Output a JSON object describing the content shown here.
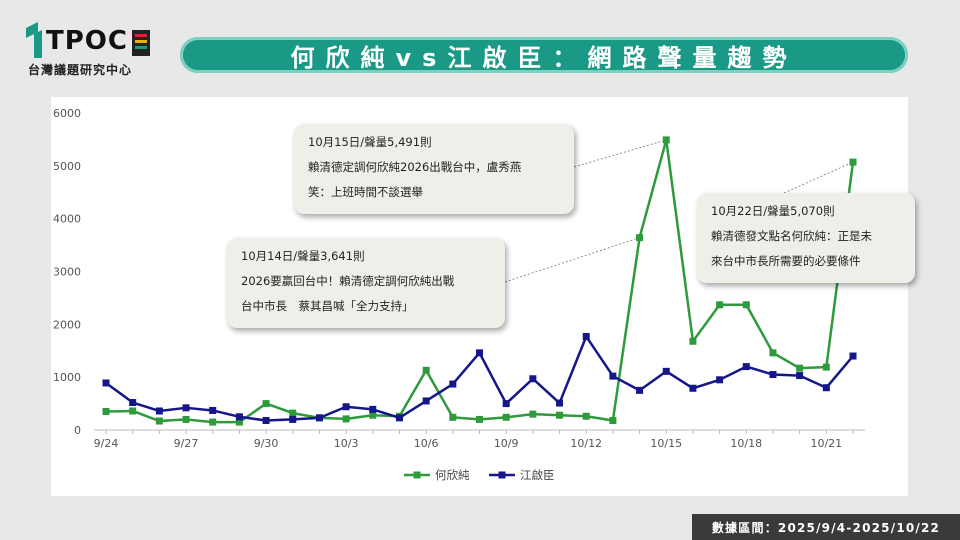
{
  "logo": {
    "text": "TPOC",
    "subtitle": "台灣議題研究中心"
  },
  "header": {
    "title": "何欣純vs江啟臣：網路聲量趨勢"
  },
  "footer": {
    "date_range": "數據區間：2025/9/4-2025/10/22"
  },
  "colors": {
    "green": "#2e9a3c",
    "navy": "#15168a",
    "teal": "#1a9a86"
  },
  "chart_data": {
    "type": "line",
    "title": "",
    "xlabel": "",
    "ylabel": "",
    "ylim": [
      0,
      6000
    ],
    "yticks": [
      0,
      1000,
      2000,
      3000,
      4000,
      5000,
      6000
    ],
    "x": [
      "9/24",
      "9/25",
      "9/26",
      "9/27",
      "9/28",
      "9/29",
      "9/30",
      "10/1",
      "10/2",
      "10/3",
      "10/4",
      "10/5",
      "10/6",
      "10/7",
      "10/8",
      "10/9",
      "10/10",
      "10/11",
      "10/12",
      "10/13",
      "10/14",
      "10/15",
      "10/16",
      "10/17",
      "10/18",
      "10/19",
      "10/20",
      "10/21",
      "10/22"
    ],
    "xtick_labels": [
      "9/24",
      "9/27",
      "9/30",
      "10/3",
      "10/6",
      "10/9",
      "10/12",
      "10/15",
      "10/18",
      "10/21"
    ],
    "grid": false,
    "legend_position": "bottom",
    "series": [
      {
        "name": "何欣純",
        "color": "#2e9a3c",
        "values": [
          350,
          360,
          170,
          200,
          150,
          150,
          500,
          320,
          230,
          210,
          280,
          260,
          1130,
          240,
          200,
          240,
          300,
          280,
          260,
          180,
          3641,
          5491,
          1680,
          2370,
          2370,
          1460,
          1170,
          1190,
          5070
        ]
      },
      {
        "name": "江啟臣",
        "color": "#15168a",
        "values": [
          890,
          520,
          360,
          420,
          370,
          250,
          180,
          200,
          230,
          440,
          390,
          230,
          550,
          870,
          1460,
          500,
          970,
          510,
          1770,
          1020,
          750,
          1110,
          790,
          950,
          1200,
          1050,
          1030,
          800,
          1400
        ]
      }
    ],
    "annotations": [
      {
        "id": "oct15",
        "date": "10/15",
        "series": "何欣純",
        "lines": [
          "10月15日/聲量5,491則",
          "賴清德定調何欣純2026出戰台中，盧秀燕",
          "笑：上班時間不談選舉"
        ]
      },
      {
        "id": "oct14",
        "date": "10/14",
        "series": "何欣純",
        "lines": [
          "10月14日/聲量3,641則",
          "2026要贏回台中！賴清德定調何欣純出戰",
          "台中市長　蔡其昌喊「全力支持」"
        ]
      },
      {
        "id": "oct22",
        "date": "10/22",
        "series": "何欣純",
        "lines": [
          "10月22日/聲量5,070則",
          "賴清德發文點名何欣純：正是未",
          "來台中市長所需要的必要條件"
        ]
      }
    ]
  }
}
